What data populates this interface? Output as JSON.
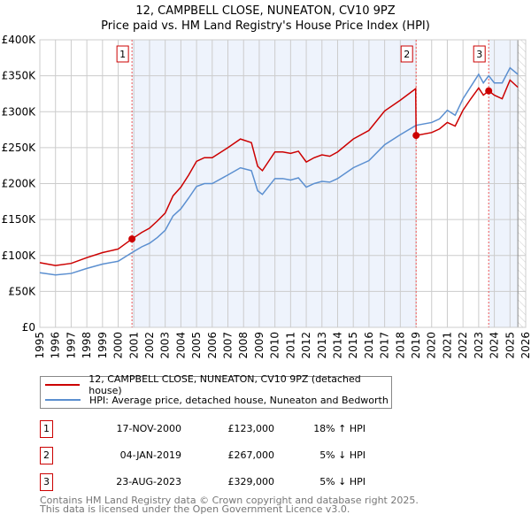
{
  "chart_data": {
    "type": "line",
    "title": "12, CAMPBELL CLOSE, NUNEATON, CV10 9PZ",
    "subtitle": "Price paid vs. HM Land Registry's House Price Index (HPI)",
    "xlim": [
      1995,
      2026
    ],
    "ylim": [
      0,
      400000
    ],
    "y_ticks": [
      "£0",
      "£50K",
      "£100K",
      "£150K",
      "£200K",
      "£250K",
      "£300K",
      "£350K",
      "£400K"
    ],
    "x_ticks": [
      "1995",
      "1996",
      "1997",
      "1998",
      "1999",
      "2000",
      "2001",
      "2002",
      "2003",
      "2004",
      "2005",
      "2006",
      "2007",
      "2008",
      "2009",
      "2010",
      "2011",
      "2012",
      "2013",
      "2014",
      "2015",
      "2016",
      "2017",
      "2018",
      "2019",
      "2020",
      "2021",
      "2022",
      "2023",
      "2024",
      "2025",
      "2026"
    ],
    "grid": true,
    "colors": {
      "price": "#cc0000",
      "hpi": "#5b8fd0",
      "shade": "#eef3fc"
    },
    "series": [
      {
        "name": "12, CAMPBELL CLOSE, NUNEATON, CV10 9PZ (detached house)",
        "points": [
          [
            1995,
            90
          ],
          [
            1996,
            86
          ],
          [
            1997,
            89
          ],
          [
            1998,
            97
          ],
          [
            1999,
            104
          ],
          [
            2000,
            109
          ],
          [
            2000.88,
            123
          ],
          [
            2001.5,
            132
          ],
          [
            2002,
            138
          ],
          [
            2002.5,
            148
          ],
          [
            2003,
            159
          ],
          [
            2003.5,
            183
          ],
          [
            2004,
            195
          ],
          [
            2004.5,
            212
          ],
          [
            2005,
            231
          ],
          [
            2005.5,
            236
          ],
          [
            2006,
            236
          ],
          [
            2007,
            250
          ],
          [
            2007.8,
            262
          ],
          [
            2008.5,
            257
          ],
          [
            2008.9,
            224
          ],
          [
            2009.2,
            218
          ],
          [
            2010,
            244
          ],
          [
            2010.5,
            244
          ],
          [
            2011,
            242
          ],
          [
            2011.5,
            245
          ],
          [
            2012,
            230
          ],
          [
            2012.5,
            236
          ],
          [
            2013,
            240
          ],
          [
            2013.5,
            238
          ],
          [
            2014,
            244
          ],
          [
            2015,
            262
          ],
          [
            2016,
            274
          ],
          [
            2017,
            301
          ],
          [
            2018,
            316
          ],
          [
            2018.98,
            332
          ],
          [
            2019.01,
            267
          ],
          [
            2020,
            271
          ],
          [
            2020.5,
            276
          ],
          [
            2021,
            285
          ],
          [
            2021.5,
            280
          ],
          [
            2022,
            302
          ],
          [
            2022.5,
            318
          ],
          [
            2023,
            333
          ],
          [
            2023.3,
            323
          ],
          [
            2023.64,
            329
          ],
          [
            2024,
            323
          ],
          [
            2024.5,
            318
          ],
          [
            2025,
            344
          ],
          [
            2025.5,
            334
          ]
        ]
      },
      {
        "name": "HPI: Average price, detached house, Nuneaton and Bedworth",
        "points": [
          [
            1995,
            76
          ],
          [
            1996,
            73
          ],
          [
            1997,
            75
          ],
          [
            1998,
            82
          ],
          [
            1999,
            88
          ],
          [
            2000,
            92
          ],
          [
            2000.88,
            104
          ],
          [
            2001.5,
            112
          ],
          [
            2002,
            117
          ],
          [
            2002.5,
            125
          ],
          [
            2003,
            135
          ],
          [
            2003.5,
            155
          ],
          [
            2004,
            165
          ],
          [
            2004.5,
            180
          ],
          [
            2005,
            196
          ],
          [
            2005.5,
            200
          ],
          [
            2006,
            200
          ],
          [
            2007,
            212
          ],
          [
            2007.8,
            222
          ],
          [
            2008.5,
            218
          ],
          [
            2008.9,
            190
          ],
          [
            2009.2,
            185
          ],
          [
            2010,
            207
          ],
          [
            2010.5,
            207
          ],
          [
            2011,
            205
          ],
          [
            2011.5,
            208
          ],
          [
            2012,
            195
          ],
          [
            2012.5,
            200
          ],
          [
            2013,
            203
          ],
          [
            2013.5,
            202
          ],
          [
            2014,
            207
          ],
          [
            2015,
            222
          ],
          [
            2016,
            232
          ],
          [
            2017,
            254
          ],
          [
            2018,
            268
          ],
          [
            2019,
            281
          ],
          [
            2020,
            285
          ],
          [
            2020.5,
            290
          ],
          [
            2021,
            302
          ],
          [
            2021.5,
            295
          ],
          [
            2022,
            318
          ],
          [
            2022.5,
            335
          ],
          [
            2023,
            352
          ],
          [
            2023.3,
            340
          ],
          [
            2023.64,
            350
          ],
          [
            2024,
            340
          ],
          [
            2024.5,
            340
          ],
          [
            2025,
            361
          ],
          [
            2025.5,
            352
          ]
        ]
      }
    ],
    "sales": [
      {
        "label": "1",
        "year": 2000.88,
        "value": 123
      },
      {
        "label": "2",
        "year": 2019.01,
        "value": 267
      },
      {
        "label": "3",
        "year": 2023.64,
        "value": 329
      }
    ],
    "shaded_ranges": [
      [
        2000.88,
        2019.01
      ],
      [
        2023.64,
        2025.5
      ]
    ]
  },
  "legend": {
    "price": "12, CAMPBELL CLOSE, NUNEATON, CV10 9PZ (detached house)",
    "hpi": "HPI: Average price, detached house, Nuneaton and Bedworth"
  },
  "transactions": [
    {
      "num": "1",
      "date": "17-NOV-2000",
      "price": "£123,000",
      "hpi": "18% ↑ HPI"
    },
    {
      "num": "2",
      "date": "04-JAN-2019",
      "price": "£267,000",
      "hpi": "5% ↓ HPI"
    },
    {
      "num": "3",
      "date": "23-AUG-2023",
      "price": "£329,000",
      "hpi": "5% ↓ HPI"
    }
  ],
  "footer": {
    "line1": "Contains HM Land Registry data © Crown copyright and database right 2025.",
    "line2": "This data is licensed under the Open Government Licence v3.0."
  }
}
